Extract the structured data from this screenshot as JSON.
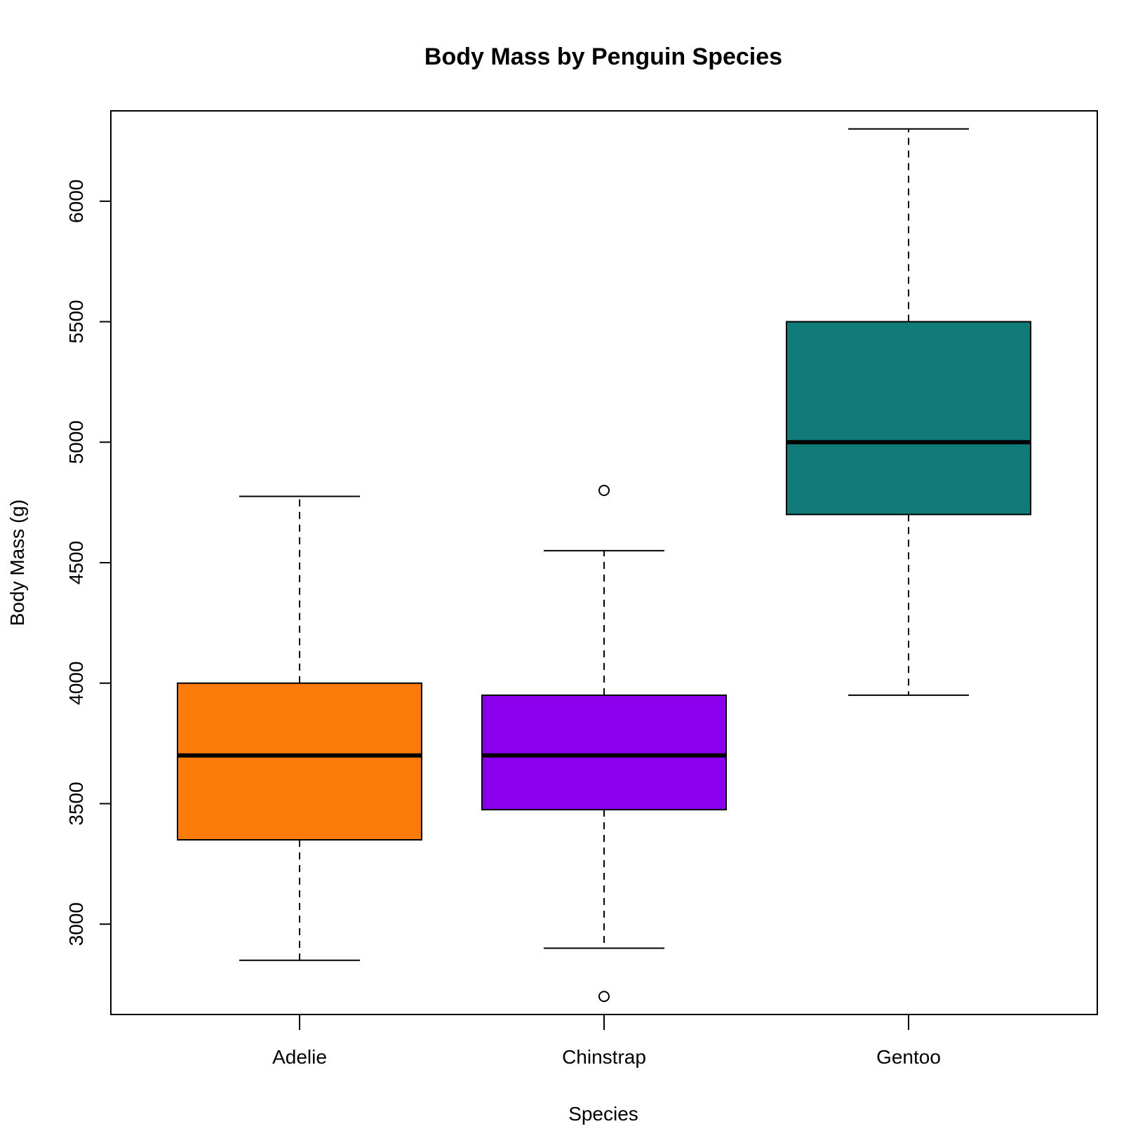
{
  "chart_data": {
    "type": "boxplot",
    "title": "Body Mass by Penguin Species",
    "xlabel": "Species",
    "ylabel": "Body Mass (g)",
    "ylim": [
      2625,
      6375
    ],
    "yticks": [
      3000,
      3500,
      4000,
      4500,
      5000,
      5500,
      6000
    ],
    "grid": false,
    "legend": "none",
    "categories": [
      "Adelie",
      "Chinstrap",
      "Gentoo"
    ],
    "boxes": [
      {
        "category": "Adelie",
        "color": "#fd7b0b",
        "whisker_low": 2850,
        "q1": 3350,
        "median": 3700,
        "q3": 4000,
        "whisker_high": 4775,
        "outliers": []
      },
      {
        "category": "Chinstrap",
        "color": "#8b00ec",
        "whisker_low": 2900,
        "q1": 3475,
        "median": 3700,
        "q3": 3950,
        "whisker_high": 4550,
        "outliers": [
          2700,
          4800
        ]
      },
      {
        "category": "Gentoo",
        "color": "#107b78",
        "whisker_low": 3950,
        "q1": 4700,
        "median": 5000,
        "q3": 5500,
        "whisker_high": 6300,
        "outliers": []
      }
    ]
  }
}
